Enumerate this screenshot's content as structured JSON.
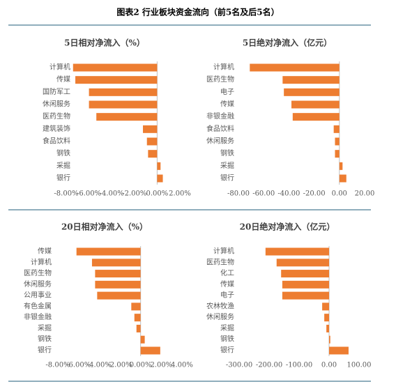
{
  "title": "图表2 行业板块资金流向（前5名及后5名）",
  "chart_data": [
    {
      "type": "bar",
      "orientation": "horizontal",
      "title": "5日相对净流入（%）",
      "color": "#ED7D31",
      "categories": [
        "计算机",
        "传媒",
        "国防军工",
        "休闲服务",
        "医药生物",
        "建筑装饰",
        "食品饮料",
        "钢铁",
        "采掘",
        "银行"
      ],
      "values": [
        -7.4,
        -7.2,
        -6.0,
        -6.0,
        -5.35,
        -1.25,
        -0.9,
        -0.8,
        0.3,
        0.5
      ],
      "xlim": [
        -8,
        2
      ],
      "xticks": [
        {
          "value": -8,
          "label": "-8.00%"
        },
        {
          "value": -6,
          "label": "-6.00%"
        },
        {
          "value": -4,
          "label": "-4.00%"
        },
        {
          "value": -2,
          "label": "-2.00%"
        },
        {
          "value": 0,
          "label": "0.00%"
        },
        {
          "value": 2,
          "label": "2.00%"
        }
      ]
    },
    {
      "type": "bar",
      "orientation": "horizontal",
      "title": "5日绝对净流入（亿元）",
      "color": "#ED7D31",
      "categories": [
        "计算机",
        "医药生物",
        "电子",
        "传媒",
        "非银金融",
        "食品饮料",
        "休闲服务",
        "钢铁",
        "采掘",
        "银行"
      ],
      "values": [
        -71,
        -45,
        -44,
        -38,
        -37,
        -4.5,
        -3.5,
        -3.5,
        2.5,
        5.5
      ],
      "xlim": [
        -80,
        20
      ],
      "xticks": [
        {
          "value": -80,
          "label": "-80.00"
        },
        {
          "value": -60,
          "label": "-60.00"
        },
        {
          "value": -40,
          "label": "-40.00"
        },
        {
          "value": -20,
          "label": "-20.00"
        },
        {
          "value": 0,
          "label": "0.00"
        },
        {
          "value": 20,
          "label": "20.00"
        }
      ]
    },
    {
      "type": "bar",
      "orientation": "horizontal",
      "title": "20日相对净流入（%）",
      "color": "#ED7D31",
      "categories": [
        "传媒",
        "计算机",
        "医药生物",
        "休闲服务",
        "公用事业",
        "有色金属",
        "非银金融",
        "采掘",
        "钢铁",
        "银行"
      ],
      "values": [
        -6.2,
        -4.7,
        -4.4,
        -4.4,
        -4.2,
        -0.9,
        -0.6,
        -0.4,
        0.4,
        1.9
      ],
      "xlim": [
        -8,
        4
      ],
      "xticks": [
        {
          "value": -8,
          "label": "-8.00%"
        },
        {
          "value": -6,
          "label": "-6.00%"
        },
        {
          "value": -4,
          "label": "-4.00%"
        },
        {
          "value": -2,
          "label": "-2.00%"
        },
        {
          "value": 0,
          "label": "0.00%"
        },
        {
          "value": 2,
          "label": "2.00%"
        },
        {
          "value": 4,
          "label": "4.00%"
        }
      ]
    },
    {
      "type": "bar",
      "orientation": "horizontal",
      "title": "20日绝对净流入（亿元）",
      "color": "#ED7D31",
      "categories": [
        "计算机",
        "医药生物",
        "化工",
        "传媒",
        "电子",
        "农林牧渔",
        "休闲服务",
        "采掘",
        "钢铁",
        "银行"
      ],
      "values": [
        -212,
        -175,
        -160,
        -156,
        -156,
        -23,
        -16,
        -9,
        4,
        65
      ],
      "xlim": [
        -300,
        100
      ],
      "xticks": [
        {
          "value": -300,
          "label": "-300.00"
        },
        {
          "value": -200,
          "label": "-200.00"
        },
        {
          "value": -100,
          "label": "-100.00"
        },
        {
          "value": 0,
          "label": "0.00"
        },
        {
          "value": 100,
          "label": "100.00"
        }
      ]
    }
  ]
}
